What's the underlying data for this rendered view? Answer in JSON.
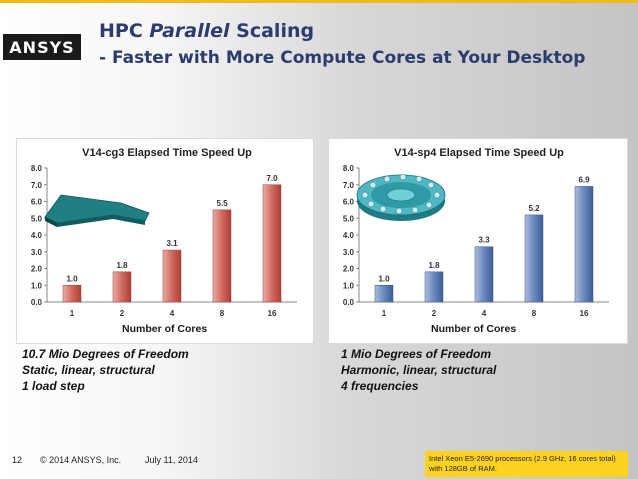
{
  "header": {
    "logo_text": "ANSYS",
    "title_prefix": "HPC ",
    "title_italic": "Parallel",
    "title_suffix": " Scaling",
    "subtitle": "- Faster with More Compute Cores at Your Desktop"
  },
  "colors": {
    "accent_rule": "#f0ba18",
    "title": "#2a3d6e",
    "left_bars": "#c94a3e",
    "right_bars": "#4a6fb0",
    "note_box": "#ffd21f"
  },
  "left": {
    "cores_label": "Number of Cores",
    "desc_lines": [
      "10.7 Mio Degrees of Freedom",
      "Static, linear, structural",
      "1 load step"
    ],
    "image_icon": "cantilever-plate-model"
  },
  "right": {
    "cores_label": "Number of Cores",
    "desc_lines": [
      "1 Mio Degrees of Freedom",
      "Harmonic, linear, structural",
      "4 frequencies"
    ],
    "image_icon": "bearing-ring-model"
  },
  "footer": {
    "page": "12",
    "copyright": "© 2014 ANSYS, Inc.",
    "date": "July 11, 2014",
    "note": "Intel Xeon E5-2690 processors (2.9 GHz, 16 cores total) with 128GB of RAM."
  },
  "chart_data": [
    {
      "type": "bar",
      "title": "V14-cg3 Elapsed Time Speed Up",
      "categories": [
        "1",
        "2",
        "4",
        "8",
        "16"
      ],
      "values": [
        1.0,
        1.8,
        3.1,
        5.5,
        7.0
      ],
      "data_labels": [
        "1.0",
        "1.8",
        "3.1",
        "5.5",
        "7.0"
      ],
      "ylim": [
        0,
        8
      ],
      "yticks": [
        "0.0",
        "1.0",
        "2.0",
        "3.0",
        "4.0",
        "5.0",
        "6.0",
        "7.0",
        "8.0"
      ],
      "xlabel": "Number of Cores",
      "grid": false,
      "color": "#c94a3e"
    },
    {
      "type": "bar",
      "title": "V14-sp4 Elapsed Time Speed Up",
      "categories": [
        "1",
        "2",
        "4",
        "8",
        "16"
      ],
      "values": [
        1.0,
        1.8,
        3.3,
        5.2,
        6.9
      ],
      "data_labels": [
        "1.0",
        "1.8",
        "3.3",
        "5.2",
        "6.9"
      ],
      "ylim": [
        0,
        8
      ],
      "yticks": [
        "0.0",
        "1.0",
        "2.0",
        "3.0",
        "4.0",
        "5.0",
        "6.0",
        "7.0",
        "8.0"
      ],
      "xlabel": "Number of Cores",
      "grid": false,
      "color": "#4a6fb0"
    }
  ]
}
